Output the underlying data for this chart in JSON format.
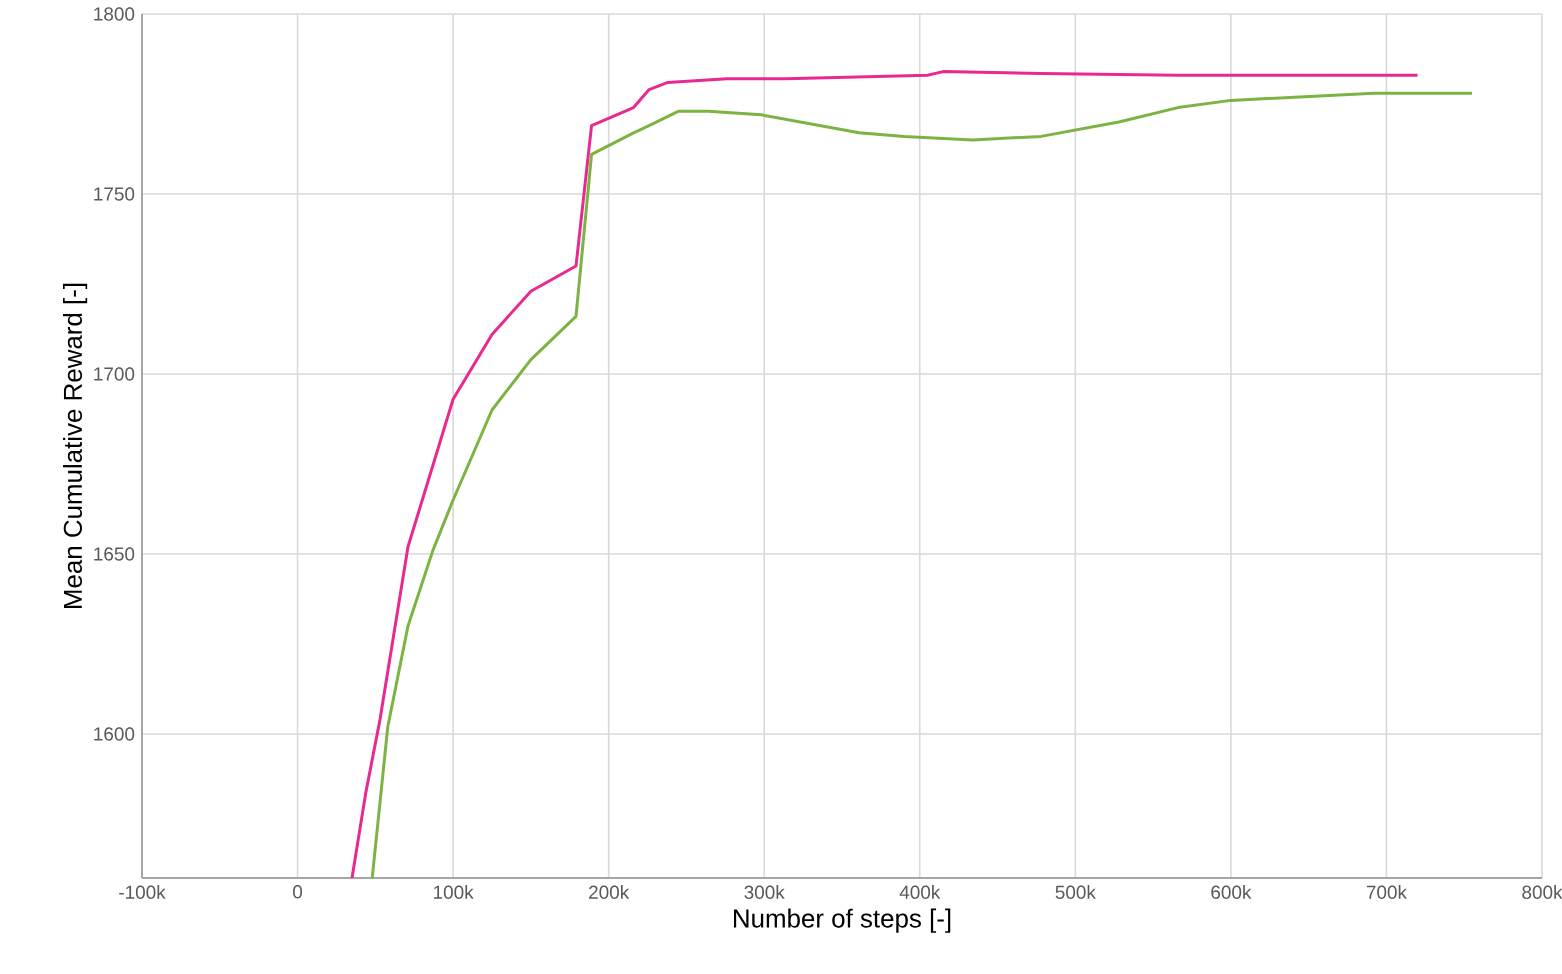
{
  "chart_data": {
    "type": "line",
    "xlabel": "Number of steps [-]",
    "ylabel": "Mean Cumulative Reward [-]",
    "xlim": [
      -100000,
      800000
    ],
    "ylim": [
      1560,
      1800
    ],
    "xticks": [
      {
        "value": -100000,
        "label": "-100k"
      },
      0,
      {
        "value": 100000,
        "label": "100k"
      },
      {
        "value": 200000,
        "label": "200k"
      },
      {
        "value": 300000,
        "label": "300k"
      },
      {
        "value": 400000,
        "label": "400k"
      },
      {
        "value": 500000,
        "label": "500k"
      },
      {
        "value": 600000,
        "label": "600k"
      },
      {
        "value": 700000,
        "label": "700k"
      },
      {
        "value": 800000,
        "label": "800k"
      }
    ],
    "yticks": [
      1600,
      1650,
      1700,
      1750,
      1800
    ],
    "grid": true,
    "marker": "none",
    "line_style": "solid",
    "series": [
      {
        "color": "#e8298f",
        "x": [
          35000,
          44000,
          53000,
          71000,
          100000,
          125000,
          150000,
          179000,
          189000,
          216000,
          226000,
          238000,
          276000,
          314000,
          405000,
          415000,
          478000,
          566000,
          692000,
          720000
        ],
        "values": [
          1560,
          1584,
          1604,
          1652,
          1693,
          1711,
          1723,
          1730,
          1769,
          1774,
          1779,
          1781,
          1782,
          1782,
          1783,
          1784,
          1783.5,
          1783,
          1783,
          1783
        ]
      },
      {
        "color": "#7cb342",
        "x": [
          48000,
          58000,
          71000,
          87000,
          100000,
          125000,
          150000,
          179000,
          189000,
          216000,
          226000,
          245000,
          264000,
          298000,
          361000,
          390000,
          434000,
          478000,
          528000,
          566000,
          600000,
          692000,
          755000
        ],
        "values": [
          1560,
          1602,
          1630,
          1651,
          1665,
          1690,
          1704,
          1716,
          1761,
          1767,
          1769,
          1773,
          1773,
          1772,
          1767,
          1766,
          1765,
          1766,
          1770,
          1774,
          1776,
          1778,
          1778
        ]
      }
    ]
  }
}
